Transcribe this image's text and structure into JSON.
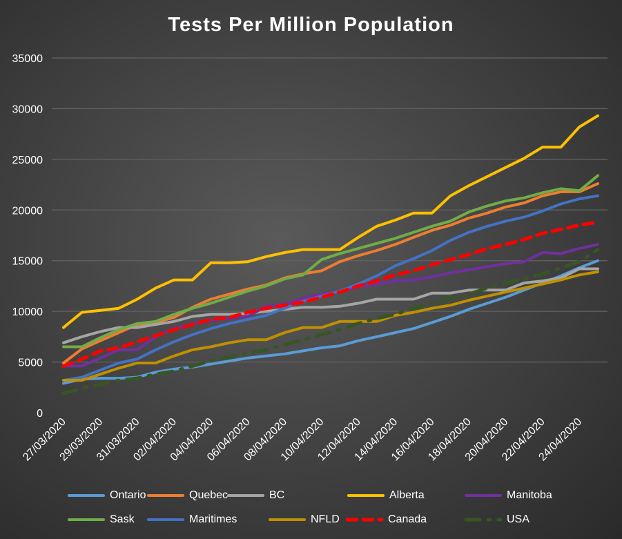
{
  "chart_data": {
    "type": "line",
    "title": "Tests Per Million Population",
    "xlabel": "",
    "ylabel": "",
    "ylim": [
      0,
      35000
    ],
    "yticks": [
      "0",
      "5000",
      "10000",
      "15000",
      "20000",
      "25000",
      "30000",
      "35000"
    ],
    "grid": true,
    "legend_position": "bottom",
    "x": [
      "27/03/2020",
      "28/03/2020",
      "29/03/2020",
      "30/03/2020",
      "31/03/2020",
      "01/04/2020",
      "02/04/2020",
      "03/04/2020",
      "04/04/2020",
      "05/04/2020",
      "06/04/2020",
      "07/04/2020",
      "08/04/2020",
      "09/04/2020",
      "10/04/2020",
      "11/04/2020",
      "12/04/2020",
      "13/04/2020",
      "14/04/2020",
      "15/04/2020",
      "16/04/2020",
      "17/04/2020",
      "18/04/2020",
      "19/04/2020",
      "20/04/2020",
      "21/04/2020",
      "22/04/2020",
      "23/04/2020",
      "24/04/2020",
      "25/04/2020"
    ],
    "xtick_labels": [
      "27/03/2020",
      "29/03/2020",
      "31/03/2020",
      "02/04/2020",
      "04/04/2020",
      "06/04/2020",
      "08/04/2020",
      "10/04/2020",
      "12/04/2020",
      "14/04/2020",
      "16/04/2020",
      "18/04/2020",
      "20/04/2020",
      "22/04/2020",
      "24/04/2020"
    ],
    "series": [
      {
        "name": "Ontario",
        "color": "#5b9bd5",
        "style": "solid",
        "values": [
          2900,
          3300,
          3400,
          3400,
          3500,
          4000,
          4300,
          4500,
          4800,
          5100,
          5400,
          5600,
          5800,
          6100,
          6400,
          6600,
          7100,
          7500,
          7900,
          8300,
          8900,
          9500,
          10200,
          10800,
          11400,
          12100,
          12800,
          13500,
          14300,
          15000
        ]
      },
      {
        "name": "Quebec",
        "color": "#ed7d31",
        "style": "solid",
        "values": [
          4900,
          6300,
          7100,
          7900,
          8700,
          8900,
          9400,
          10400,
          11200,
          11700,
          12200,
          12600,
          13300,
          13700,
          14000,
          14900,
          15500,
          16000,
          16600,
          17300,
          18000,
          18500,
          19200,
          19700,
          20300,
          20700,
          21400,
          21800,
          21800,
          22600
        ]
      },
      {
        "name": "BC",
        "color": "#a5a5a5",
        "style": "solid",
        "values": [
          6900,
          7500,
          8000,
          8400,
          8400,
          8700,
          9000,
          9500,
          9700,
          9700,
          9800,
          10000,
          10200,
          10400,
          10400,
          10500,
          10800,
          11200,
          11200,
          11200,
          11800,
          11800,
          12100,
          12100,
          12100,
          12800,
          13000,
          13300,
          14200,
          14200
        ]
      },
      {
        "name": "Alberta",
        "color": "#ffc000",
        "style": "solid",
        "values": [
          8400,
          9900,
          10100,
          10300,
          11200,
          12300,
          13100,
          13100,
          14800,
          14800,
          14900,
          15400,
          15800,
          16100,
          16100,
          16100,
          17300,
          18400,
          19000,
          19700,
          19700,
          21400,
          22400,
          23300,
          24200,
          25100,
          26200,
          26200,
          28200,
          29300
        ]
      },
      {
        "name": "Manitoba",
        "color": "#7030a0",
        "style": "solid",
        "values": [
          4600,
          4600,
          5400,
          6200,
          6200,
          7500,
          8300,
          8800,
          9100,
          9300,
          9500,
          10500,
          10700,
          11300,
          11700,
          12000,
          12400,
          12700,
          13000,
          13100,
          13400,
          13800,
          14100,
          14400,
          14700,
          14900,
          15800,
          15700,
          16200,
          16600
        ]
      },
      {
        "name": "Sask",
        "color": "#70ad47",
        "style": "solid",
        "values": [
          6500,
          6500,
          7400,
          8200,
          8800,
          9000,
          9700,
          10300,
          10800,
          11400,
          12000,
          12500,
          13200,
          13600,
          15100,
          15700,
          16200,
          16700,
          17200,
          17800,
          18400,
          18900,
          19800,
          20400,
          20900,
          21200,
          21700,
          22100,
          21900,
          23400
        ]
      },
      {
        "name": "Maritimes",
        "color": "#4472c4",
        "style": "solid",
        "values": [
          3200,
          3500,
          4200,
          4900,
          5300,
          6200,
          7000,
          7700,
          8300,
          8800,
          9200,
          9600,
          10300,
          11000,
          11500,
          12000,
          12700,
          13500,
          14500,
          15200,
          16000,
          17000,
          17800,
          18400,
          18900,
          19300,
          19900,
          20600,
          21100,
          21400
        ]
      },
      {
        "name": "NFLD",
        "color": "#bf9000",
        "style": "solid",
        "values": [
          3200,
          3200,
          3800,
          4400,
          4900,
          4900,
          5600,
          6200,
          6500,
          6900,
          7200,
          7200,
          7900,
          8400,
          8400,
          9000,
          9000,
          9000,
          9600,
          9900,
          10300,
          10600,
          11100,
          11500,
          11900,
          12300,
          12700,
          13100,
          13600,
          13900
        ]
      },
      {
        "name": "Canada",
        "color": "#ff0000",
        "style": "dash",
        "values": [
          4600,
          5300,
          6100,
          6400,
          7000,
          7600,
          8200,
          8700,
          9200,
          9400,
          9900,
          10300,
          10600,
          10900,
          11400,
          11900,
          12500,
          13000,
          13600,
          14000,
          14600,
          15100,
          15600,
          16200,
          16600,
          17100,
          17700,
          18100,
          18500,
          18800
        ]
      },
      {
        "name": "USA",
        "color": "#375623",
        "style": "dashdot",
        "values": [
          1900,
          2400,
          2800,
          3200,
          3400,
          3800,
          4100,
          4600,
          5100,
          5500,
          5900,
          6200,
          6700,
          7200,
          7700,
          8200,
          8800,
          9300,
          9700,
          10300,
          10800,
          11300,
          11700,
          12300,
          12800,
          13200,
          13700,
          14300,
          14900,
          16100
        ]
      }
    ]
  }
}
